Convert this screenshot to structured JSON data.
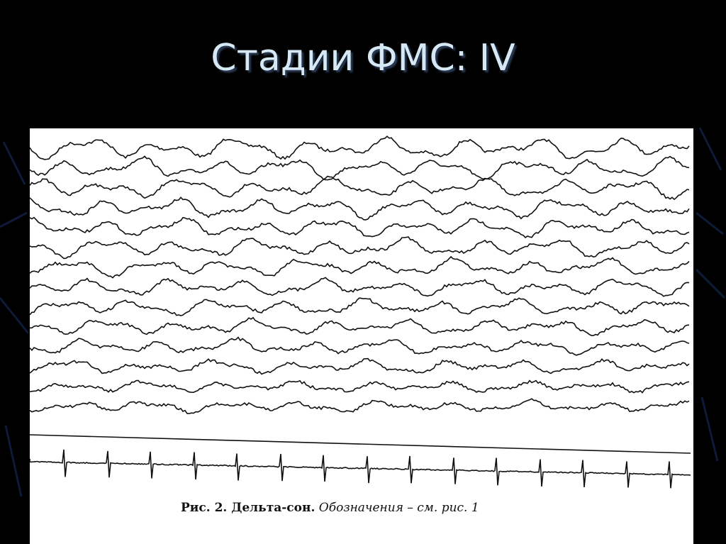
{
  "slide": {
    "title": "Стадии ФМС: IV",
    "figure": {
      "caption_bold": "Рис. 2. Дельта-сон.",
      "caption_italic": "Обозначения – см. рис. 1"
    }
  }
}
